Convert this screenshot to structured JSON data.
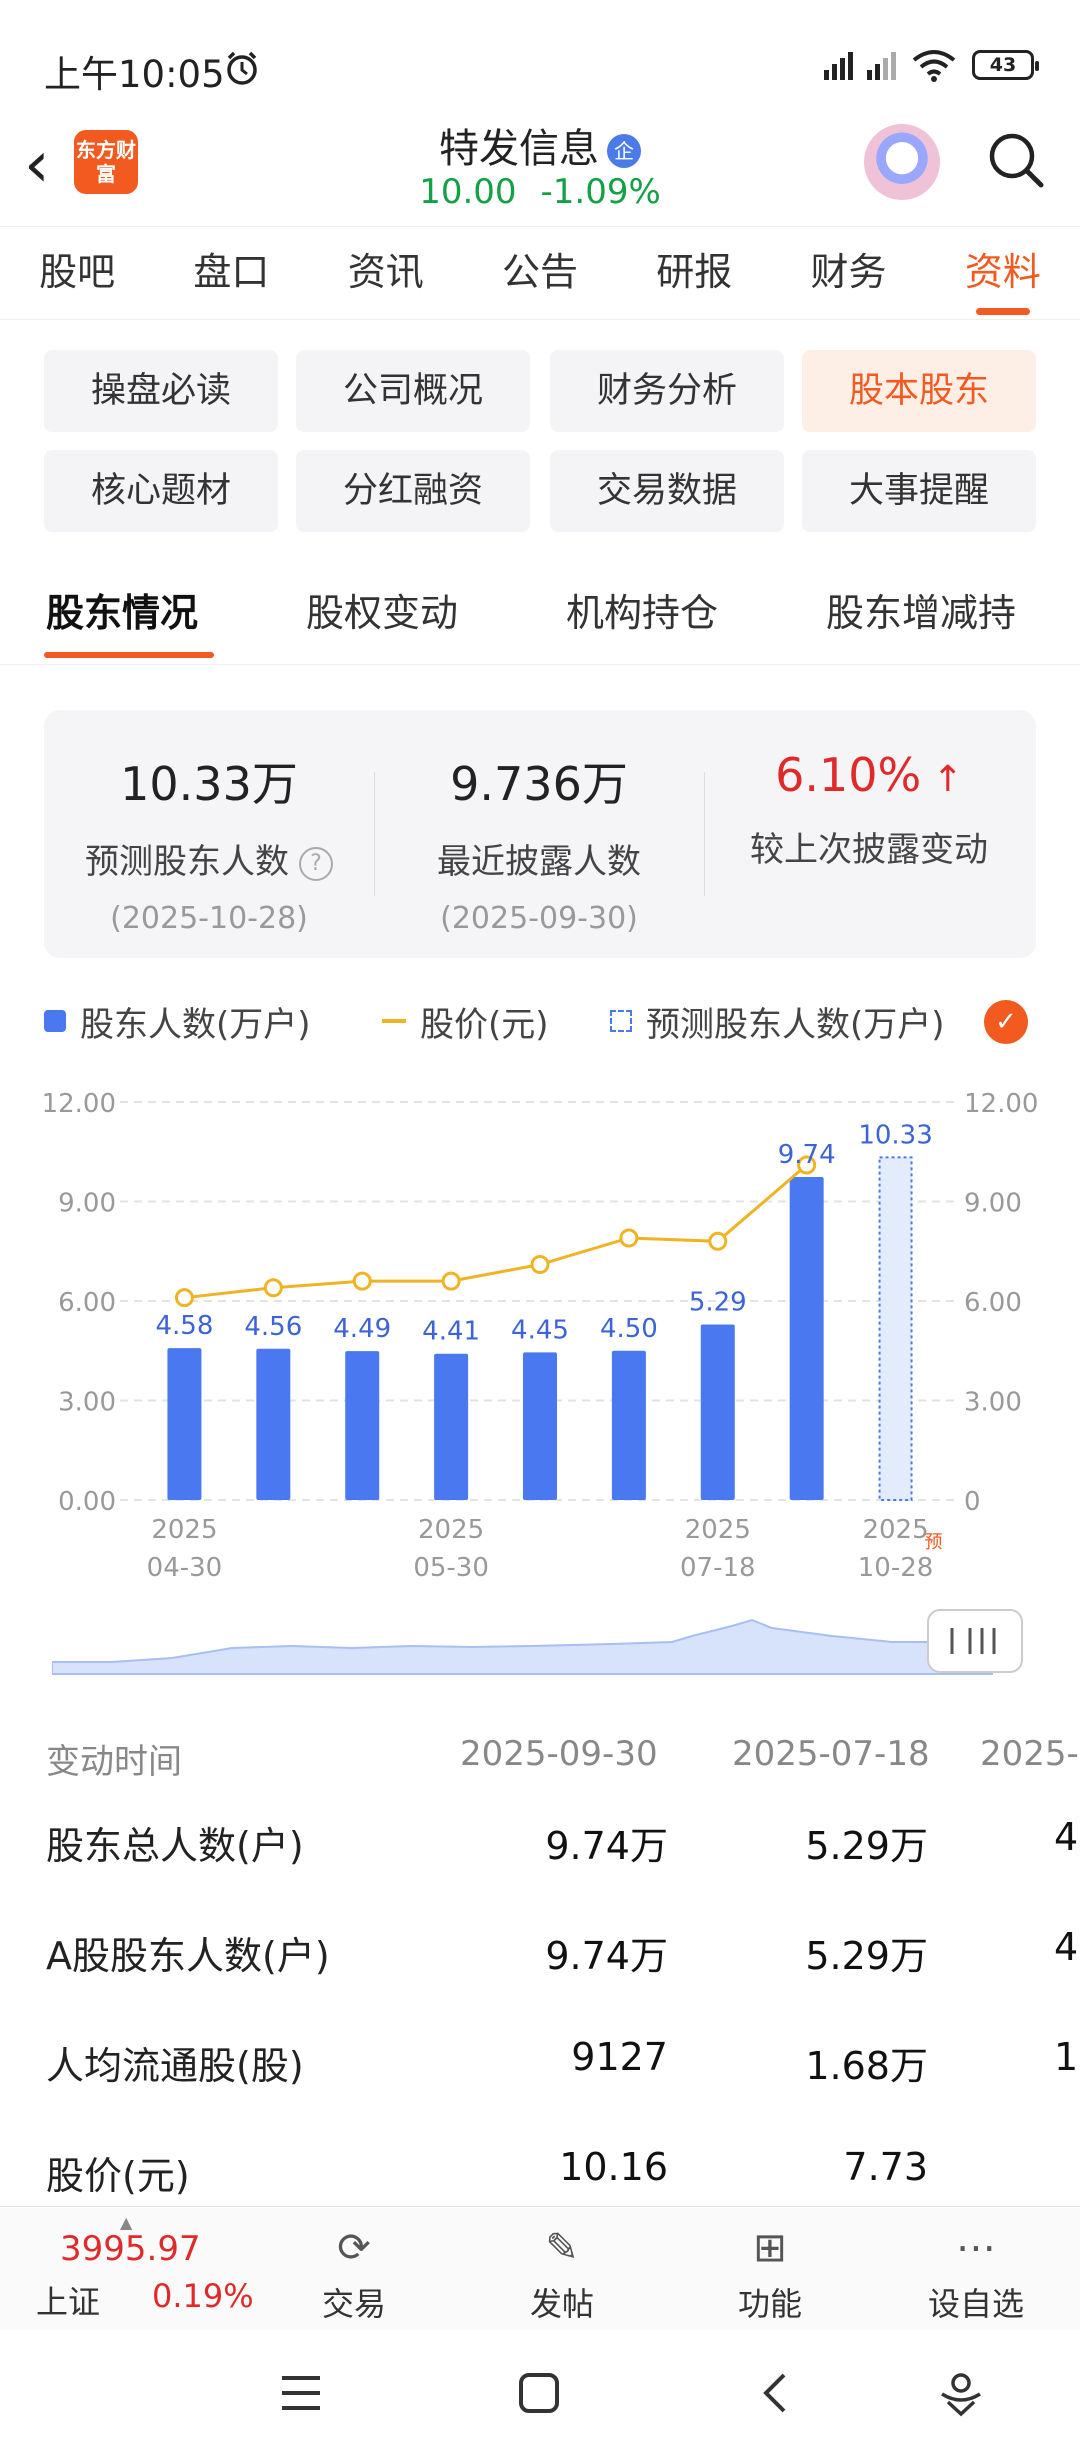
{
  "status_bar": {
    "time": "上午10:05",
    "battery": "43",
    "icons": [
      "alarm-icon",
      "signal-icon",
      "signal-icon",
      "wifi-icon",
      "battery-icon"
    ]
  },
  "header": {
    "logo_text": "东方财富",
    "stock_name": "特发信息",
    "badge": "企",
    "price": "10.00",
    "change": "-1.09%"
  },
  "tabs": [
    "股吧",
    "盘口",
    "资讯",
    "公告",
    "研报",
    "财务",
    "资料"
  ],
  "active_tab": "资料",
  "grid_buttons": [
    "操盘必读",
    "公司概况",
    "财务分析",
    "股本股东",
    "核心题材",
    "分红融资",
    "交易数据",
    "大事提醒"
  ],
  "active_grid_button": "股本股东",
  "sub_tabs": [
    "股东情况",
    "股权变动",
    "机构持仓",
    "股东增减持"
  ],
  "summary": {
    "predicted": {
      "value": "10.33万",
      "label": "预测股东人数",
      "date": "(2025-10-28)"
    },
    "latest": {
      "value": "9.736万",
      "label": "最近披露人数",
      "date": "(2025-09-30)"
    },
    "change": {
      "value": "6.10%",
      "label": "较上次披露变动"
    }
  },
  "legend": {
    "holders": "股东人数(万户)",
    "price": "股价(元)",
    "predicted": "预测股东人数(万户)"
  },
  "colors": {
    "accent": "#f25a1f",
    "bar": "#4a78f0",
    "price_line": "#f0b323",
    "down": "#14a046",
    "up": "#e02a2a"
  },
  "chart_data": {
    "type": "bar",
    "categories": [
      "2025-04-30",
      "",
      "",
      "2025-05-30",
      "",
      "",
      "2025-07-18",
      "",
      "2025-10-28"
    ],
    "x_tick_labels": [
      {
        "year": "2025",
        "date": "04-30",
        "index": 0
      },
      {
        "year": "2025",
        "date": "05-30",
        "index": 3
      },
      {
        "year": "2025",
        "date": "07-18",
        "index": 6
      },
      {
        "year": "2025",
        "date": "10-28",
        "index": 8
      }
    ],
    "series": [
      {
        "name": "股东人数(万户)",
        "values": [
          4.58,
          4.56,
          4.49,
          4.41,
          4.45,
          4.5,
          5.29,
          9.74,
          null
        ]
      },
      {
        "name": "股价(元)",
        "type": "line",
        "values": [
          6.1,
          6.4,
          6.6,
          6.6,
          7.1,
          7.9,
          7.8,
          10.1,
          null
        ]
      },
      {
        "name": "预测股东人数(万户)",
        "values": [
          null,
          null,
          null,
          null,
          null,
          null,
          null,
          null,
          10.33
        ]
      }
    ],
    "data_labels": [
      "4.58",
      "4.56",
      "4.49",
      "4.41",
      "4.45",
      "4.50",
      "5.29",
      "9.74",
      "10.33"
    ],
    "y_ticks_left": [
      "12.00",
      "9.00",
      "6.00",
      "3.00",
      "0.00"
    ],
    "y_ticks_right": [
      "12.00",
      "9.00",
      "6.00",
      "3.00",
      "0"
    ],
    "ylim": [
      0,
      12
    ],
    "predicted_marker": "预",
    "grid": true
  },
  "table": {
    "header": [
      "变动时间",
      "2025-09-30",
      "2025-07-18",
      "2025-"
    ],
    "rows": [
      {
        "label": "股东总人数(户)",
        "values": [
          "9.74万",
          "5.29万",
          "4"
        ]
      },
      {
        "label": "A股股东人数(户)",
        "values": [
          "9.74万",
          "5.29万",
          "4"
        ]
      },
      {
        "label": "人均流通股(股)",
        "values": [
          "9127",
          "1.68万",
          "1"
        ]
      },
      {
        "label": "股价(元)",
        "values": [
          "10.16",
          "7.73",
          ""
        ]
      }
    ]
  },
  "bottom_bar": {
    "index_value": "3995.97",
    "index_name": "上证",
    "index_change": "0.19%",
    "items": [
      "交易",
      "发帖",
      "功能",
      "设自选"
    ]
  }
}
